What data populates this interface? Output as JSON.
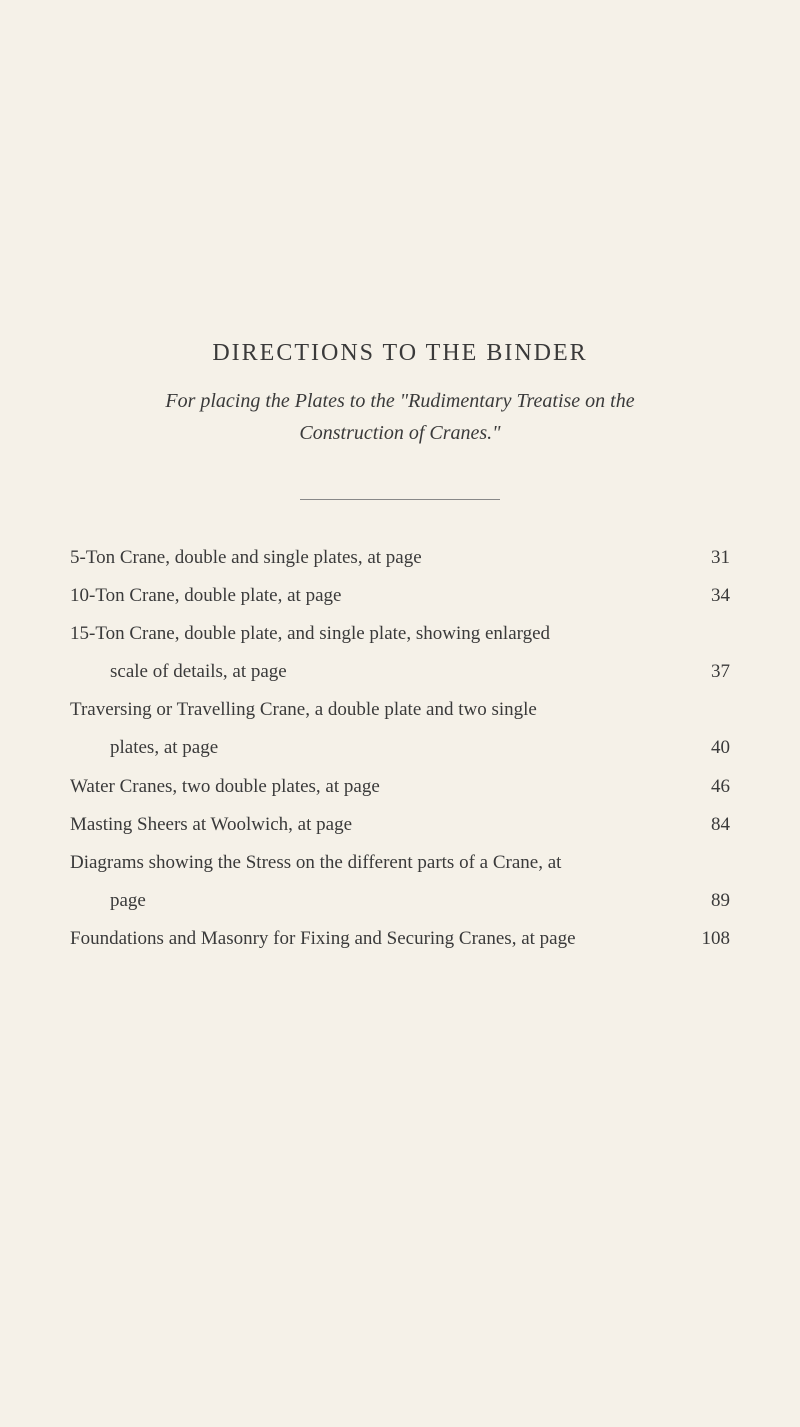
{
  "title": "DIRECTIONS TO THE BINDER",
  "subtitle_line1": "For placing the Plates to the \"Rudimentary Treatise on the",
  "subtitle_line2": "Construction of Cranes.\"",
  "entries": [
    {
      "text": "5-Ton Crane, double and single plates, at page",
      "page": "31",
      "indent": false
    },
    {
      "text": "10-Ton Crane, double plate, at page",
      "page": "34",
      "indent": false
    },
    {
      "text": "15-Ton Crane, double plate, and single plate, showing enlarged",
      "page": "",
      "indent": false
    },
    {
      "text": "scale of details, at page",
      "page": "37",
      "indent": true
    },
    {
      "text": "Traversing or Travelling Crane, a double plate and two single",
      "page": "",
      "indent": false
    },
    {
      "text": "plates, at page",
      "page": "40",
      "indent": true
    },
    {
      "text": "Water Cranes, two double plates, at page",
      "page": "46",
      "indent": false
    },
    {
      "text": "Masting Sheers at Woolwich, at page",
      "page": "84",
      "indent": false
    },
    {
      "text": "Diagrams showing the Stress on the different parts of a Crane, at",
      "page": "",
      "indent": false
    },
    {
      "text": "page",
      "page": "89",
      "indent": true
    },
    {
      "text": "Foundations and Masonry for Fixing and Securing Cranes, at page",
      "page": "108",
      "indent": false
    }
  ],
  "colors": {
    "background": "#f5f1e8",
    "text": "#3a3a3a",
    "divider": "#888888"
  },
  "typography": {
    "font_family": "Times New Roman, Georgia, serif",
    "title_fontsize": 24,
    "subtitle_fontsize": 20,
    "body_fontsize": 19
  }
}
